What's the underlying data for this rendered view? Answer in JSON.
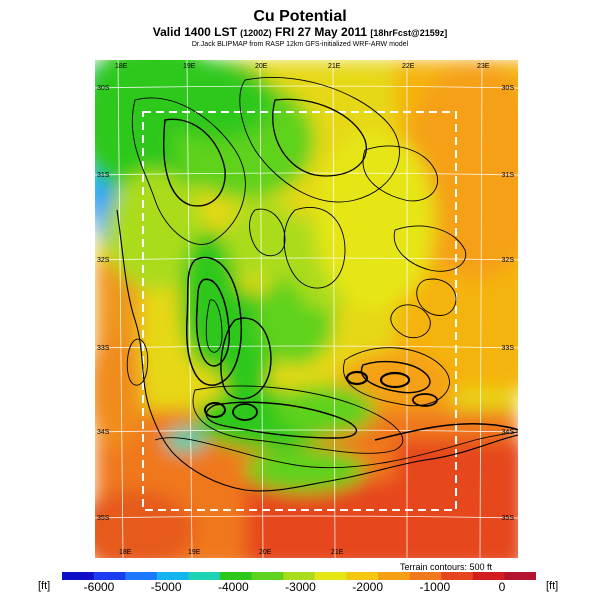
{
  "header": {
    "title": "Cu Potential",
    "valid_line": "Valid 1400 LST (1200Z) FRI 27 May 2011 [18hrFcst@2159z]",
    "valid_main": "Valid 1400 LST",
    "valid_small_a": "(1200Z)",
    "valid_date": "FRI 27 May 2011",
    "valid_small_b": "[18hrFcst@2159z]",
    "source": "Dr.Jack BLIPMAP from RASP 12km GFS-initialized WRF-ARW model"
  },
  "map": {
    "lon_labels_top": [
      "18E",
      "19E",
      "20E",
      "21E",
      "22E",
      "23E"
    ],
    "lon_labels_bottom": [
      "18E",
      "19E",
      "20E",
      "21E"
    ],
    "lat_labels_left": [
      "30S",
      "31S",
      "32S",
      "33S",
      "34S",
      "35S"
    ],
    "lat_labels_right": [
      "30S",
      "31S",
      "32S",
      "33S",
      "34S",
      "35S"
    ],
    "terrain_note": "Terrain contours: 500 ft"
  },
  "colorbar": {
    "unit_left": "[ft]",
    "unit_right": "[ft]",
    "ticks": [
      "-6000",
      "-5000",
      "-4000",
      "-3000",
      "-2000",
      "-1000",
      "0"
    ],
    "colors": [
      "#1010c8",
      "#1c3cf0",
      "#1e78ff",
      "#15b4f0",
      "#1ed2b4",
      "#2dc81e",
      "#5fd21e",
      "#aadc1e",
      "#e6e614",
      "#f5c80f",
      "#f5a014",
      "#f0781e",
      "#e6461e",
      "#d21e1e",
      "#b4142d"
    ]
  }
}
